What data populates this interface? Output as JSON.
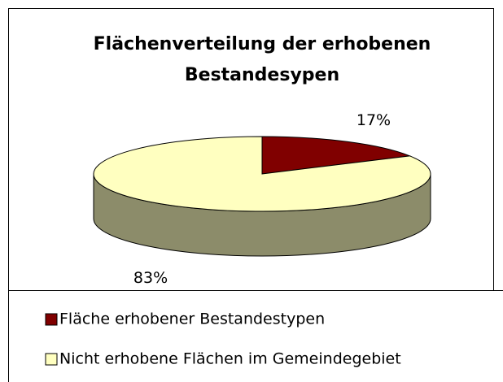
{
  "chart_data": {
    "type": "pie",
    "title": "Flächenverteilung der erhobenen Bestandesypen",
    "categories": [
      "Fläche erhobener Bestandestypen",
      "Nicht erhobene Flächen im Gemeindegebiet"
    ],
    "values": [
      17,
      83
    ],
    "value_labels": [
      "17%",
      "83%"
    ],
    "colors": [
      "#800000",
      "#ffffc0"
    ],
    "legend": "bottom"
  }
}
